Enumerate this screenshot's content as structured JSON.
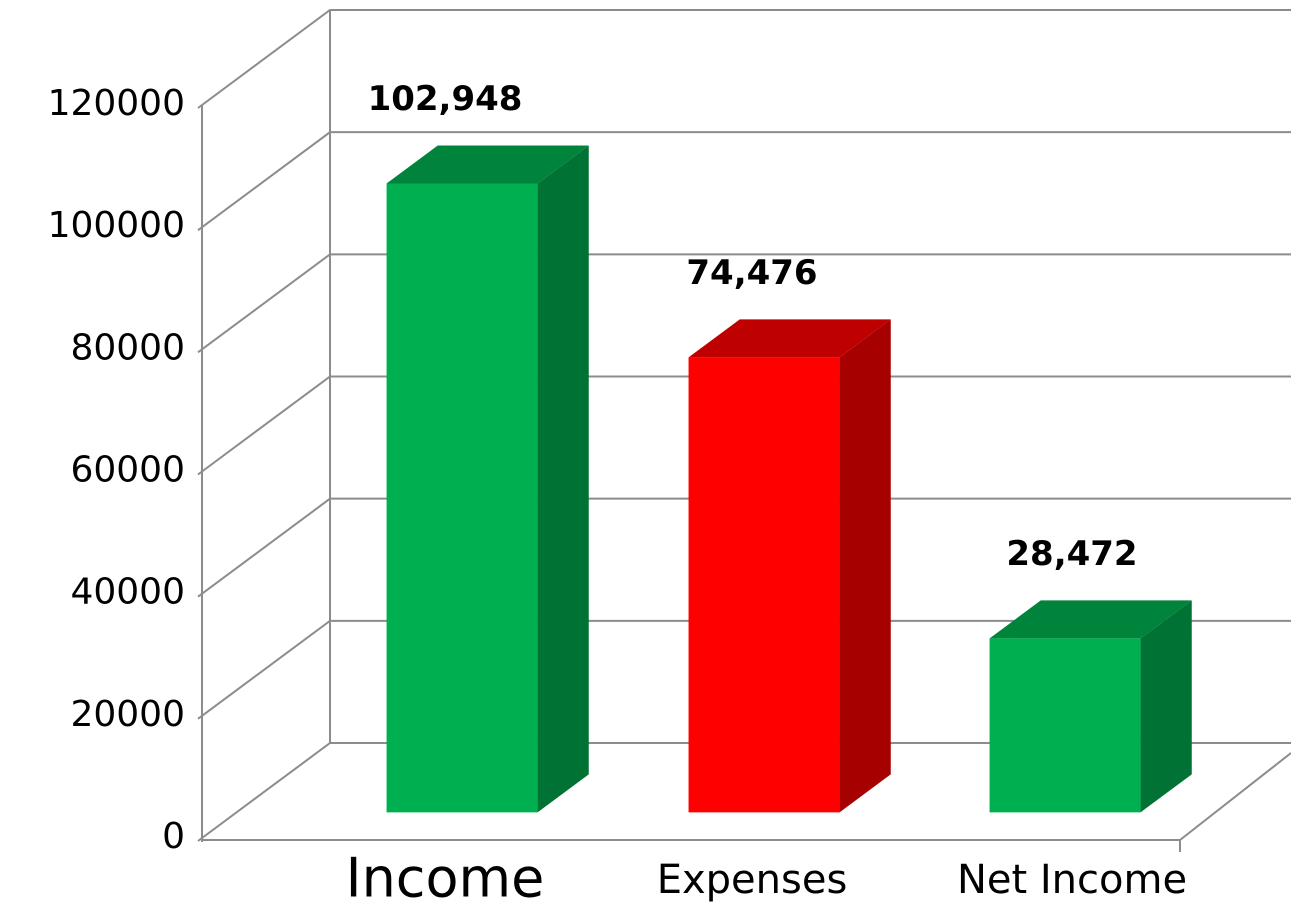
{
  "chart_data": {
    "type": "bar3d",
    "categories": [
      "Income",
      "Expenses",
      "Net Income"
    ],
    "values": [
      102948,
      74476,
      28472
    ],
    "value_labels": [
      "102,948",
      "74,476",
      "28,472"
    ],
    "colors": [
      "#00b050",
      "#ff0000",
      "#00b050"
    ],
    "ylim": [
      0,
      120000
    ],
    "yticks": [
      0,
      20000,
      40000,
      60000,
      80000,
      100000,
      120000
    ],
    "grid": true
  }
}
